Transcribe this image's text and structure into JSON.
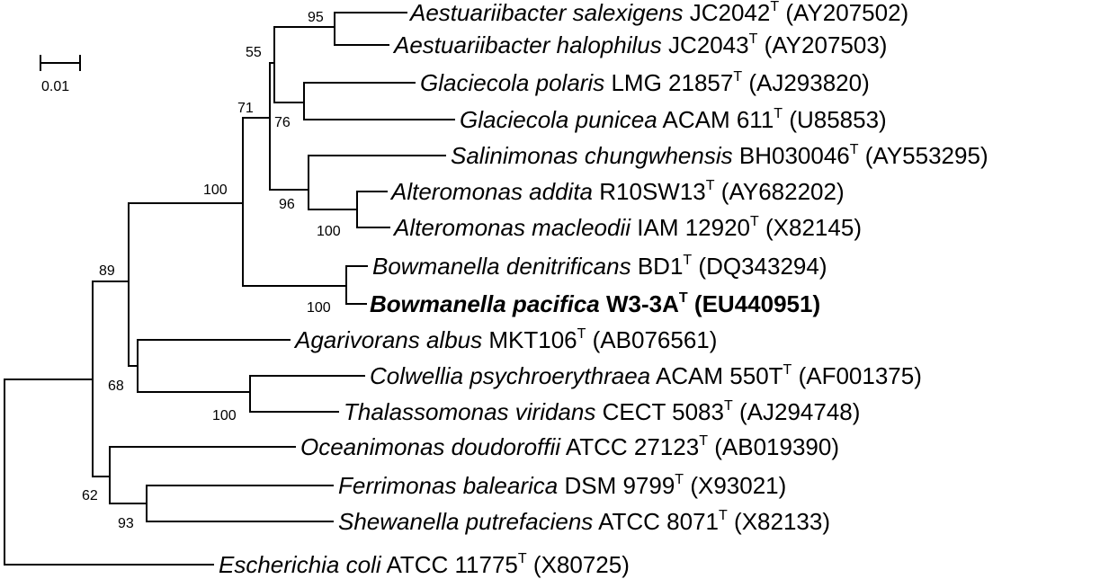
{
  "scale_bar": {
    "label": "0.01"
  },
  "taxa": [
    {
      "id": "t1",
      "genus_species": "Aestuariibacter salexigens",
      "strain": "JC2042",
      "type_mark": "T",
      "accession": "(AY207502)",
      "bold": false
    },
    {
      "id": "t2",
      "genus_species": "Aestuariibacter halophilus",
      "strain": "JC2043",
      "type_mark": "T",
      "accession": "(AY207503)",
      "bold": false
    },
    {
      "id": "t3",
      "genus_species": "Glaciecola polaris",
      "strain": "LMG 21857",
      "type_mark": "T",
      "accession": "(AJ293820)",
      "bold": false
    },
    {
      "id": "t4",
      "genus_species": "Glaciecola punicea",
      "strain": "ACAM 611",
      "type_mark": "T",
      "accession": "(U85853)",
      "bold": false
    },
    {
      "id": "t5",
      "genus_species": "Salinimonas chungwhensis",
      "strain": "BH030046",
      "type_mark": "T",
      "accession": "(AY553295)",
      "bold": false
    },
    {
      "id": "t6",
      "genus_species": "Alteromonas addita",
      "strain": "R10SW13",
      "type_mark": "T",
      "accession": "(AY682202)",
      "bold": false
    },
    {
      "id": "t7",
      "genus_species": "Alteromonas macleodii",
      "strain": "IAM 12920",
      "type_mark": "T",
      "accession": "(X82145)",
      "bold": false
    },
    {
      "id": "t8",
      "genus_species": "Bowmanella denitrificans",
      "strain": "BD1",
      "type_mark": "T",
      "accession": "(DQ343294)",
      "bold": false
    },
    {
      "id": "t9",
      "genus_species": "Bowmanella pacifica",
      "strain": "W3-3A",
      "type_mark": "T",
      "accession": "(EU440951)",
      "bold": true
    },
    {
      "id": "t10",
      "genus_species": "Agarivorans albus",
      "strain": "MKT106",
      "type_mark": "T",
      "accession": "(AB076561)",
      "bold": false
    },
    {
      "id": "t11",
      "genus_species": "Colwellia psychroerythraea",
      "strain": "ACAM 550T",
      "type_mark": "T",
      "accession": "(AF001375)",
      "bold": false
    },
    {
      "id": "t12",
      "genus_species": "Thalassomonas viridans",
      "strain": "CECT 5083",
      "type_mark": "T",
      "accession": "(AJ294748)",
      "bold": false
    },
    {
      "id": "t13",
      "genus_species": "Oceanimonas doudoroffii",
      "strain": "ATCC 27123",
      "type_mark": "T",
      "accession": "(AB019390)",
      "bold": false
    },
    {
      "id": "t14",
      "genus_species": "Ferrimonas balearica",
      "strain": "DSM 9799",
      "type_mark": "T",
      "accession": "(X93021)",
      "bold": false
    },
    {
      "id": "t15",
      "genus_species": "Shewanella putrefaciens",
      "strain": "ATCC 8071",
      "type_mark": "T",
      "accession": "(X82133)",
      "bold": false
    },
    {
      "id": "t16",
      "genus_species": "Escherichia coli",
      "strain": "ATCC 11775",
      "type_mark": "T",
      "accession": "(X80725)",
      "bold": false
    }
  ],
  "bootstrap": {
    "aestuariibacter": "95",
    "aest_glac": "55",
    "glaciecola": "76",
    "upper_alteromonadaceae": "71",
    "salin_alteromonas": "96",
    "alteromonas": "100",
    "alteromonadaceae_bowmanella": "100",
    "bowmanella": "100",
    "main_clade": "89",
    "agarivorans_group": "68",
    "colwellia_thalassomonas": "100",
    "lower_clade": "62",
    "ferrimonas_shewanella": "93"
  }
}
